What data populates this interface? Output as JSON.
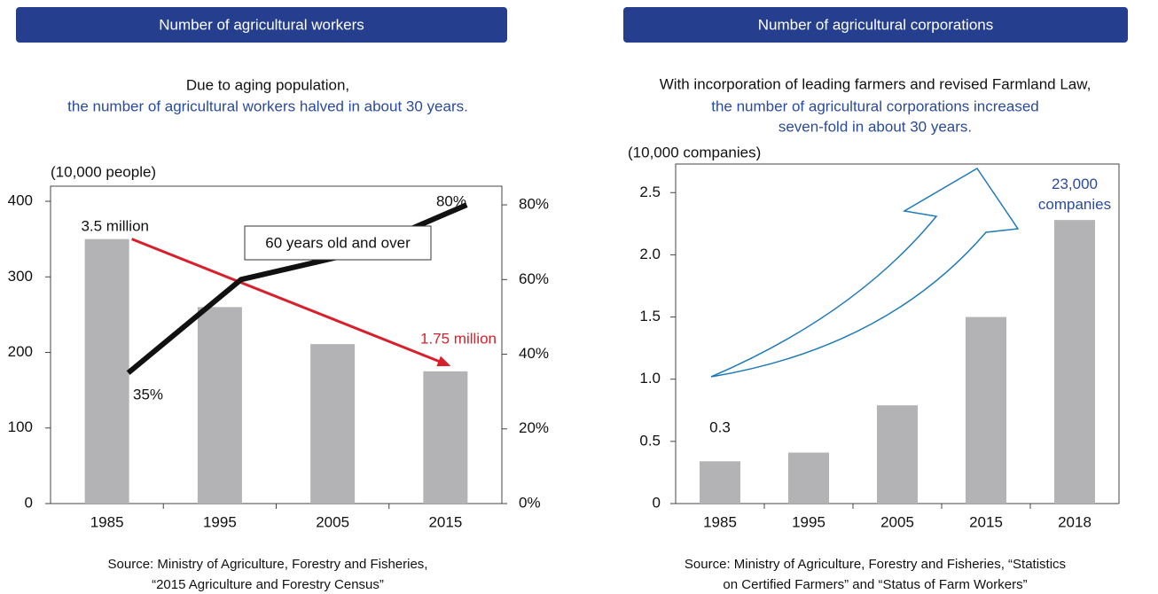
{
  "chart_data": [
    {
      "type": "bar",
      "title": "Number of agricultural workers",
      "subtitle": [
        "Due to aging population,",
        "the number of agricultural workers halved in about 30 years."
      ],
      "ylabel": "(10,000 people)",
      "categories": [
        "1985",
        "1995",
        "2005",
        "2015"
      ],
      "ylim": [
        0,
        420
      ],
      "yticks": [
        0,
        100,
        200,
        300,
        400
      ],
      "y2lim": [
        0,
        85
      ],
      "y2ticks": [
        {
          "value": 0,
          "label": "0%"
        },
        {
          "value": 20,
          "label": "20%"
        },
        {
          "value": 40,
          "label": "40%"
        },
        {
          "value": 60,
          "label": "60%"
        },
        {
          "value": 80,
          "label": "80%"
        }
      ],
      "series": [
        {
          "type": "bar",
          "color": "#b3b3b5",
          "values": [
            350,
            260,
            211,
            175
          ],
          "value_labels": [
            "3.5 million",
            null,
            null,
            "1.75 million"
          ],
          "trend_color": "#d7202b"
        },
        {
          "type": "line",
          "name": "60 years old and over",
          "color": "#111111",
          "axis": "y2",
          "values": [
            35,
            60,
            67,
            80
          ],
          "value_labels": [
            "35%",
            null,
            null,
            "80%"
          ]
        }
      ],
      "source": [
        "Source: Ministry of Agriculture, Forestry and Fisheries,",
        "“2015 Agriculture and Forestry Census”"
      ]
    },
    {
      "type": "bar",
      "title": "Number of agricultural corporations",
      "subtitle": [
        "With incorporation of leading farmers and revised Farmland Law,",
        "the number of agricultural corporations increased",
        "seven-fold in about 30 years."
      ],
      "ylabel": "(10,000 companies)",
      "categories": [
        "1985",
        "1995",
        "2005",
        "2015",
        "2018"
      ],
      "ylim": [
        0,
        2.73
      ],
      "yticks": [
        0,
        0.5,
        {
          "value": 1,
          "label": "1.0"
        },
        1.5,
        {
          "value": 2,
          "label": "2.0"
        },
        2.5
      ],
      "series": [
        {
          "type": "bar",
          "color": "#b3b3b5",
          "values": [
            0.34,
            0.41,
            0.79,
            1.5,
            2.28
          ],
          "value_labels": [
            "0.3",
            null,
            null,
            null,
            "23,000 companies"
          ]
        }
      ],
      "source": [
        "Source: Ministry of Agriculture, Forestry and Fisheries, “Statistics",
        "on Certified Farmers” and “Status of Farm Workers”"
      ]
    }
  ]
}
